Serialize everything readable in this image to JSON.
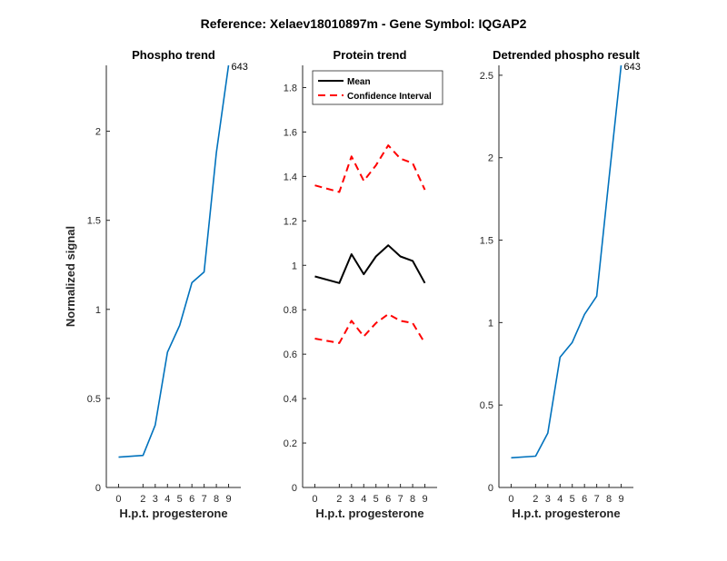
{
  "figure": {
    "title": "Reference:  Xelaev18010897m - Gene Symbol:  IQGAP2"
  },
  "colors": {
    "phospho_line": "#0072BD",
    "mean_line": "#000000",
    "ci_line": "#FF0000",
    "axis": "#262626"
  },
  "chart_data": [
    {
      "type": "line",
      "title": "Phospho trend",
      "xlabel": "H.p.t. progesterone",
      "ylabel": "Normalized signal",
      "xlim": [
        -1,
        10
      ],
      "ylim": [
        0,
        2.37
      ],
      "xticks": [
        0,
        2,
        3,
        4,
        5,
        6,
        7,
        8,
        9
      ],
      "yticks": [
        0,
        0.5,
        1,
        1.5,
        2
      ],
      "grid": false,
      "series": [
        {
          "x": [
            0,
            2,
            3,
            4,
            5,
            6,
            7,
            8,
            9
          ],
          "y": [
            0.17,
            0.18,
            0.35,
            0.76,
            0.91,
            1.15,
            1.21,
            1.88,
            2.37
          ]
        }
      ],
      "annotation": "643"
    },
    {
      "type": "line",
      "title": "Protein trend",
      "xlabel": "H.p.t. progesterone",
      "ylabel": "",
      "xlim": [
        -1,
        10
      ],
      "ylim": [
        0,
        1.9
      ],
      "xticks": [
        0,
        2,
        3,
        4,
        5,
        6,
        7,
        8,
        9
      ],
      "yticks": [
        0,
        0.2,
        0.4,
        0.6,
        0.8,
        1,
        1.2,
        1.4,
        1.6,
        1.8
      ],
      "grid": false,
      "legend_position": "top-left",
      "series": [
        {
          "name": "Mean",
          "x": [
            0,
            2,
            3,
            4,
            5,
            6,
            7,
            8,
            9
          ],
          "y": [
            0.95,
            0.92,
            1.05,
            0.96,
            1.04,
            1.09,
            1.04,
            1.02,
            0.92
          ]
        },
        {
          "name": "Confidence Interval",
          "x": [
            0,
            2,
            3,
            4,
            5,
            6,
            7,
            8,
            9
          ],
          "y": [
            1.36,
            1.33,
            1.49,
            1.38,
            1.45,
            1.54,
            1.48,
            1.46,
            1.34
          ]
        },
        {
          "x": [
            0,
            2,
            3,
            4,
            5,
            6,
            7,
            8,
            9
          ],
          "y": [
            0.67,
            0.65,
            0.75,
            0.68,
            0.74,
            0.78,
            0.75,
            0.74,
            0.65
          ]
        }
      ]
    },
    {
      "type": "line",
      "title": "Detrended phospho result",
      "xlabel": "H.p.t. progesterone",
      "ylabel": "",
      "xlim": [
        -1,
        10
      ],
      "ylim": [
        0,
        2.56
      ],
      "xticks": [
        0,
        2,
        3,
        4,
        5,
        6,
        7,
        8,
        9
      ],
      "yticks": [
        0,
        0.5,
        1,
        1.5,
        2,
        2.5
      ],
      "grid": false,
      "series": [
        {
          "x": [
            0,
            2,
            3,
            4,
            5,
            6,
            7,
            8,
            9
          ],
          "y": [
            0.18,
            0.19,
            0.33,
            0.79,
            0.88,
            1.05,
            1.16,
            1.87,
            2.56
          ]
        }
      ],
      "annotation": "643"
    }
  ]
}
